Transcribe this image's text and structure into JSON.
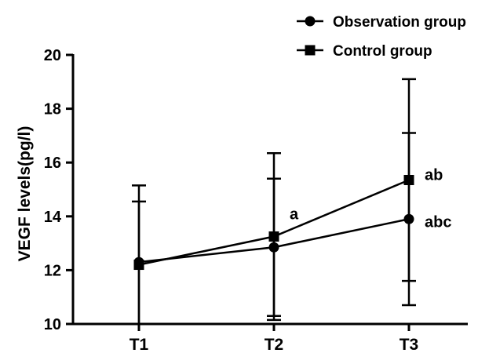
{
  "chart_data": {
    "type": "line",
    "title": "",
    "xlabel": "",
    "ylabel": "VEGF levels(pg/l)",
    "categories": [
      "T1",
      "T2",
      "T3"
    ],
    "ylim": [
      10,
      20
    ],
    "yticks": [
      10,
      12,
      14,
      16,
      18,
      20
    ],
    "grid": false,
    "legend_position": "top-right",
    "series": [
      {
        "name": "Observation group",
        "marker": "circle",
        "values": [
          12.3,
          12.85,
          13.9
        ],
        "error_low": [
          10.0,
          10.3,
          10.7
        ],
        "error_high": [
          14.55,
          15.4,
          17.1
        ]
      },
      {
        "name": "Control group",
        "marker": "square",
        "values": [
          12.2,
          13.25,
          15.35
        ],
        "error_low": [
          10.0,
          10.15,
          11.6
        ],
        "error_high": [
          15.15,
          16.35,
          19.1
        ]
      }
    ],
    "annotations": [
      {
        "category": "T2",
        "y": 14.1,
        "text": "a"
      },
      {
        "category": "T3",
        "y": 15.55,
        "text": "ab"
      },
      {
        "category": "T3",
        "y": 13.8,
        "text": "abc"
      }
    ]
  }
}
